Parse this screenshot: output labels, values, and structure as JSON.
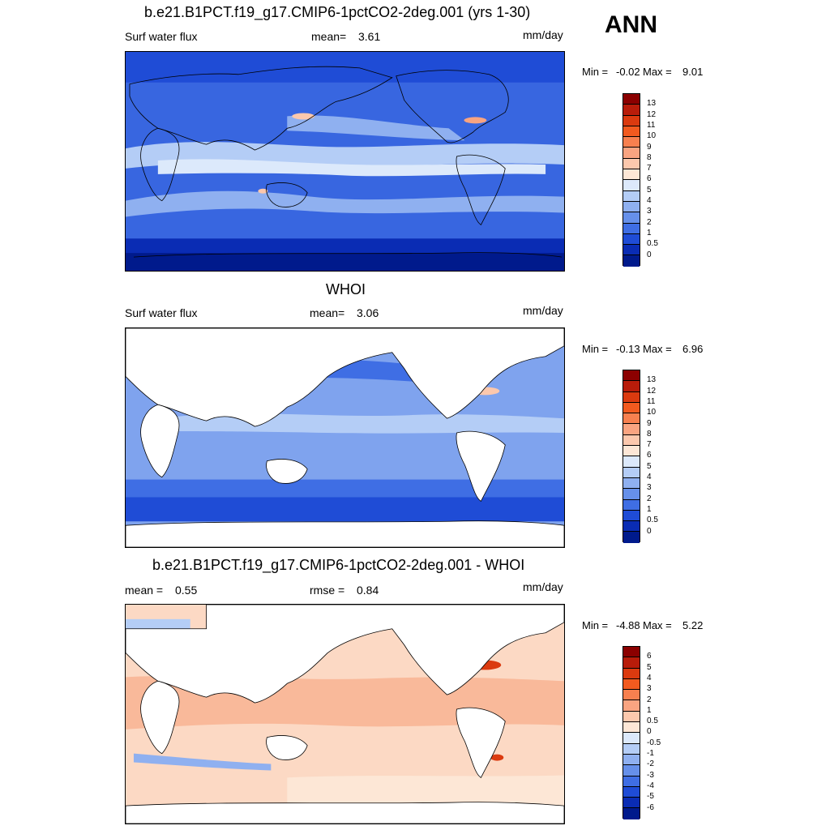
{
  "header": {
    "season": "ANN"
  },
  "chart_data": [
    {
      "type": "heatmap",
      "title": "b.e21.B1PCT.f19_g17.CMIP6-1pctCO2-2deg.001 (yrs 1-30)",
      "left_label": "Surf water flux",
      "stat_label": "mean=",
      "stat_value": "3.61",
      "units": "mm/day",
      "min_label": "Min =",
      "min_value": "-0.02",
      "max_label": "Max =",
      "max_value": "9.01",
      "colorbar_levels": [
        "13",
        "12",
        "11",
        "10",
        "9",
        "8",
        "7",
        "6",
        "5",
        "4",
        "3",
        "2",
        "1",
        "0.5",
        "0"
      ],
      "colorbar_colors": [
        "#8b0000",
        "#b81c0a",
        "#db3a0f",
        "#f25a1f",
        "#f7804f",
        "#f9a481",
        "#fcc8ad",
        "#fde7d6",
        "#dce9fb",
        "#b4cdf6",
        "#8fb0f0",
        "#6690ea",
        "#3f6ee4",
        "#1f4cd6",
        "#0a2cb4",
        "#001a8c"
      ],
      "background_color": "#3866e0"
    },
    {
      "type": "heatmap",
      "title": "WHOI",
      "left_label": "Surf water flux",
      "stat_label": "mean=",
      "stat_value": "3.06",
      "units": "mm/day",
      "min_label": "Min =",
      "min_value": "-0.13",
      "max_label": "Max =",
      "max_value": "6.96",
      "colorbar_levels": [
        "13",
        "12",
        "11",
        "10",
        "9",
        "8",
        "7",
        "6",
        "5",
        "4",
        "3",
        "2",
        "1",
        "0.5",
        "0"
      ],
      "colorbar_colors": [
        "#8b0000",
        "#b81c0a",
        "#db3a0f",
        "#f25a1f",
        "#f7804f",
        "#f9a481",
        "#fcc8ad",
        "#fde7d6",
        "#dce9fb",
        "#b4cdf6",
        "#8fb0f0",
        "#6690ea",
        "#3f6ee4",
        "#1f4cd6",
        "#0a2cb4",
        "#001a8c"
      ],
      "background_color": "#7fa3ee"
    },
    {
      "type": "heatmap",
      "title": "b.e21.B1PCT.f19_g17.CMIP6-1pctCO2-2deg.001 - WHOI",
      "left_label": "mean =",
      "left_value": "0.55",
      "stat_label": "rmse =",
      "stat_value": "0.84",
      "units": "mm/day",
      "min_label": "Min =",
      "min_value": "-4.88",
      "max_label": "Max =",
      "max_value": "5.22",
      "colorbar_levels": [
        "6",
        "5",
        "4",
        "3",
        "2",
        "1",
        "0.5",
        "0",
        "-0.5",
        "-1",
        "-2",
        "-3",
        "-4",
        "-5",
        "-6"
      ],
      "colorbar_colors": [
        "#8b0000",
        "#b81c0a",
        "#db3a0f",
        "#f25a1f",
        "#f7804f",
        "#f9a481",
        "#fcc8ad",
        "#fde7d6",
        "#dce9fb",
        "#b4cdf6",
        "#8fb0f0",
        "#6690ea",
        "#3f6ee4",
        "#1f4cd6",
        "#0a2cb4",
        "#001a8c"
      ],
      "background_color": "#fcd9c4"
    }
  ]
}
